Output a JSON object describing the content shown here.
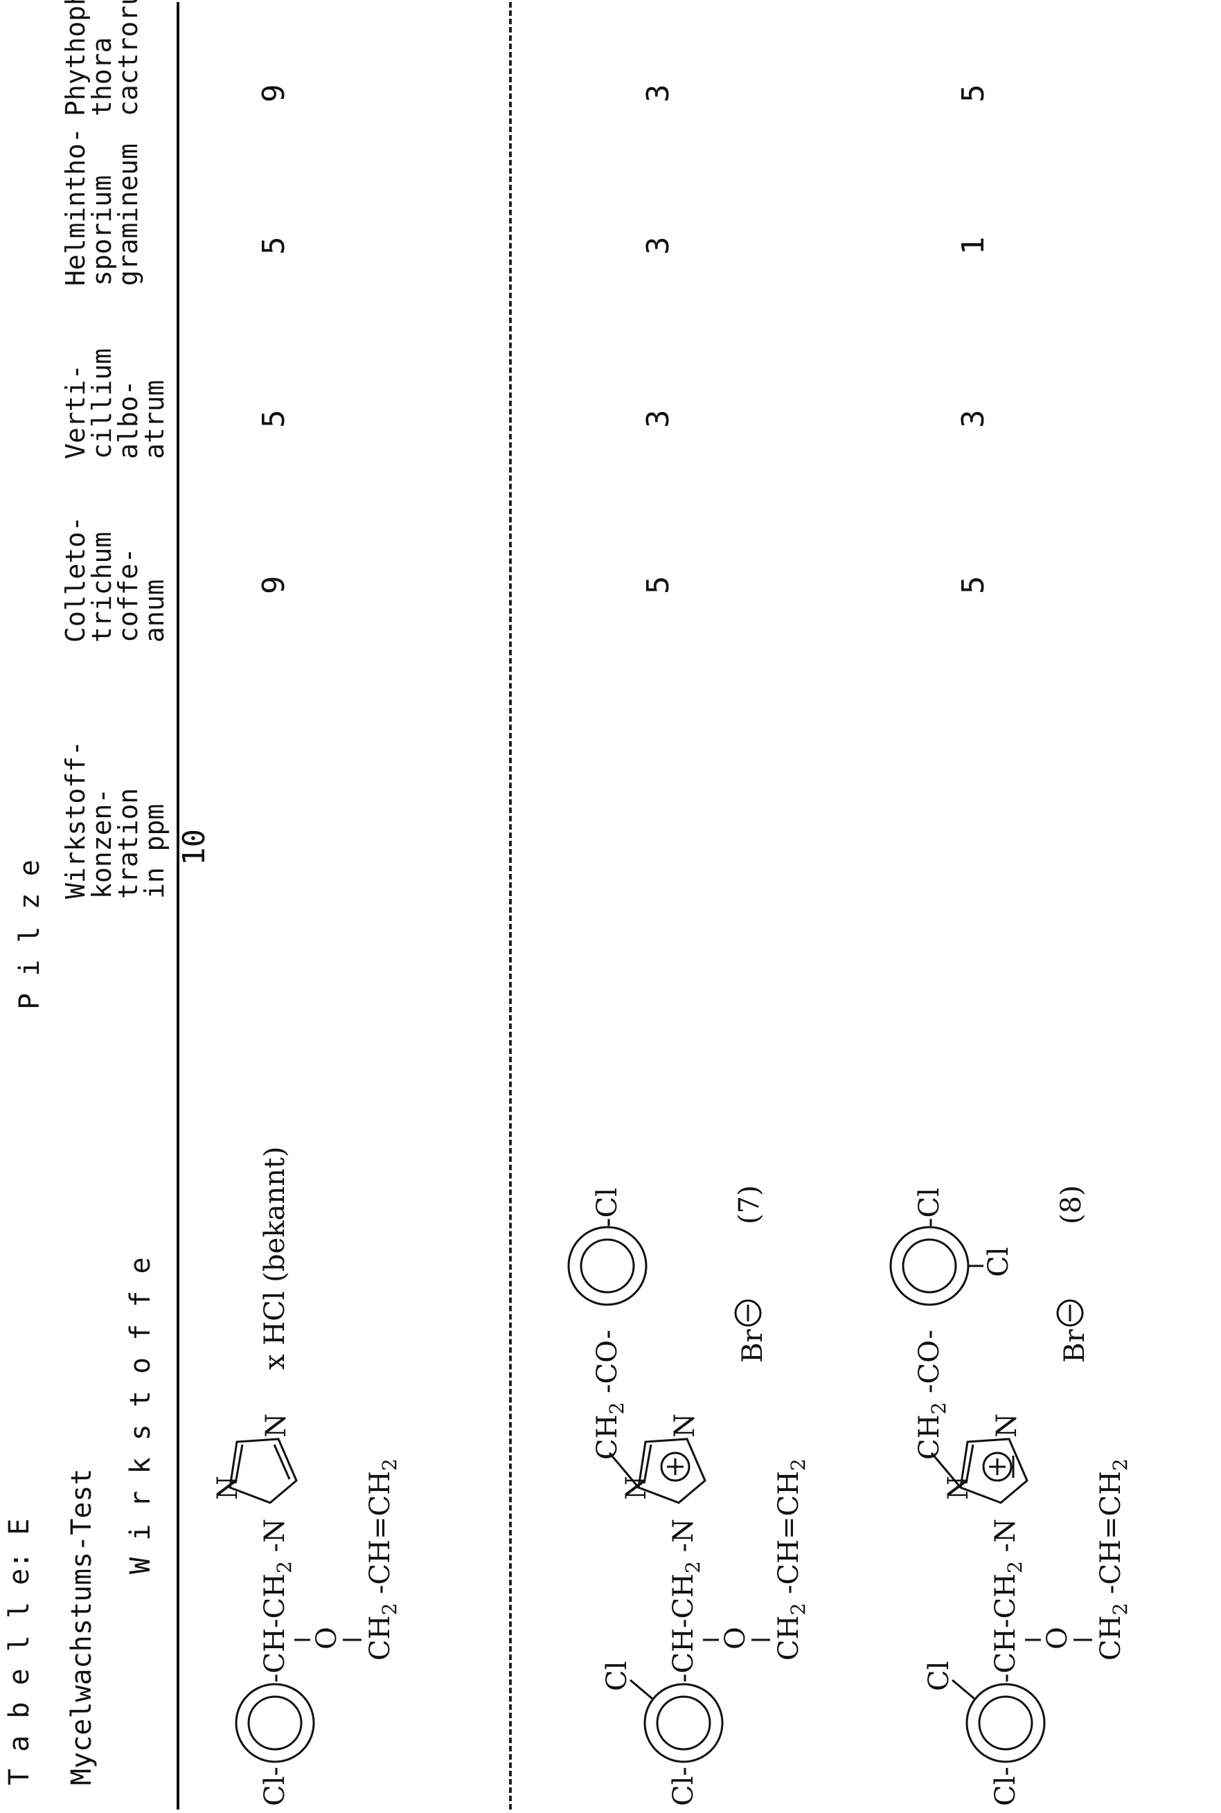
{
  "table": {
    "title": "T a b e l l e: E",
    "subtitle": "Mycelwachstums-Test",
    "column_group_label": "P i l z e",
    "col_wirkstoffe": "W i r k s t o f f e",
    "col_konzentration": [
      "Wirkstoff-",
      "konzen-",
      "tration",
      "in ppm"
    ],
    "konzentration_value": "10",
    "fungi": [
      [
        "Colleto-",
        "trichum",
        "coffe-",
        "anum"
      ],
      [
        "Verti-",
        "cillium",
        "albo-",
        "atrum"
      ],
      [
        "Helmintho-",
        "sporium",
        "gramineum"
      ],
      [
        "Phythoph-",
        "thora",
        "cactrorum"
      ]
    ],
    "rows": [
      {
        "values": [
          "9",
          "5",
          "5",
          "9"
        ]
      },
      {
        "values": [
          "5",
          "3",
          "3",
          "3"
        ]
      },
      {
        "values": [
          "5",
          "3",
          "1",
          "5"
        ]
      }
    ]
  },
  "structures": {
    "s1": {
      "cl_left": "Cl-",
      "chain": "-CH-CH",
      "chain_sub": "2",
      "chain_end": " -N",
      "o": "O",
      "allyl": "CH",
      "allyl_sub": "2",
      "allyl_end": " -CH=CH",
      "allyl_sub2": "2",
      "n_top": "N",
      "n_right": "N",
      "salt": "x  HCl  (bekannt)"
    },
    "s2": {
      "cl_left": "Cl-",
      "cl_top": "Cl",
      "chain": "-CH-CH",
      "chain_sub": "2",
      "chain_end": " -N",
      "o": "O",
      "allyl": "CH",
      "allyl_sub": "2",
      "allyl_end": " -CH=CH",
      "allyl_sub2": "2",
      "n_top": "N",
      "n_right": "N",
      "ch2co": "CH",
      "ch2co_sub": "2",
      "ch2co_end": " -CO-",
      "cl_right": "-Cl",
      "anion": "Br",
      "number": "(7)"
    },
    "s3": {
      "cl_left": "Cl-",
      "cl_top": "Cl",
      "chain": "-CH-CH",
      "chain_sub": "2",
      "chain_end": " -N",
      "o": "O",
      "allyl": "CH",
      "allyl_sub": "2",
      "allyl_end": " -CH=CH",
      "allyl_sub2": "2",
      "n_top": "N",
      "n_right": "N",
      "ch2co": "CH",
      "ch2co_sub": "2",
      "ch2co_end": " -CO-",
      "cl_right": "-Cl",
      "cl_ortho": "Cl",
      "anion": "Br",
      "number": "(8)"
    }
  }
}
